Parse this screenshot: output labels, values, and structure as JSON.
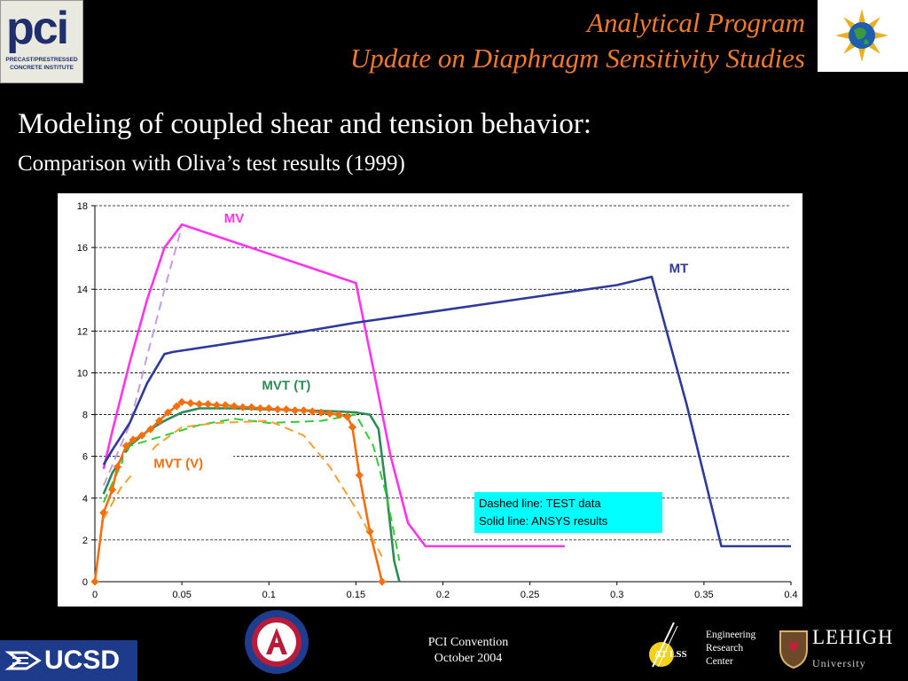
{
  "header": {
    "title_line1": "Analytical Program",
    "title_line2": "Update on Diaphragm Sensitivity Studies"
  },
  "logos": {
    "pci_big": "pci",
    "pci_small1": "PRECAST/PRESTRESSED",
    "pci_small2": "CONCRETE INSTITUTE",
    "ucsd": "UCSD",
    "atlss": "AT LSS",
    "lehigh": "LEHIGH",
    "lehigh_sub": "University"
  },
  "heading": "Modeling of coupled shear and tension behavior:",
  "subheading": "Comparison with Oliva’s test results (1999)",
  "footer": {
    "line1": "PCI Convention",
    "line2": "October 2004",
    "erc_line1": "Engineering",
    "erc_line2": "Research",
    "erc_line3": "Center"
  },
  "colors": {
    "title": "#f07a2a",
    "mv": "#ff33ee",
    "mt": "#2d3a9a",
    "mvt_t": "#2e8b57",
    "mvt_v": "#f07010",
    "legend_bg": "#00ffff"
  },
  "chart_data": {
    "type": "line",
    "x_ticks": [
      "0",
      "0.05",
      "0.1",
      "0.15",
      "0.2",
      "0.25",
      "0.3",
      "0.35",
      "0.4"
    ],
    "y_ticks": [
      "0",
      "2",
      "4",
      "6",
      "8",
      "10",
      "12",
      "14",
      "16",
      "18"
    ],
    "xlim": [
      0,
      0.4
    ],
    "ylim": [
      0,
      18
    ],
    "grid": "horizontal dashed",
    "annotation_box": {
      "line1": "Dashed line: TEST data",
      "line2": "Solid line: ANSYS results"
    },
    "series": [
      {
        "name": "MV",
        "style": "solid",
        "color": "#ff33ee",
        "points": [
          [
            0.005,
            5.4
          ],
          [
            0.01,
            7.2
          ],
          [
            0.02,
            10.5
          ],
          [
            0.03,
            13.5
          ],
          [
            0.04,
            16.0
          ],
          [
            0.05,
            17.1
          ],
          [
            0.15,
            14.3
          ],
          [
            0.16,
            10.2
          ],
          [
            0.17,
            6.0
          ],
          [
            0.18,
            2.8
          ],
          [
            0.19,
            1.7
          ],
          [
            0.27,
            1.7
          ]
        ]
      },
      {
        "name": "",
        "style": "dashed",
        "color": "#c79be0",
        "points": [
          [
            0.005,
            4.6
          ],
          [
            0.02,
            7.5
          ],
          [
            0.03,
            10.8
          ],
          [
            0.04,
            14.0
          ],
          [
            0.05,
            17.0
          ]
        ]
      },
      {
        "name": "MT",
        "style": "solid",
        "color": "#2d3a9a",
        "points": [
          [
            0.005,
            5.6
          ],
          [
            0.01,
            6.3
          ],
          [
            0.02,
            7.6
          ],
          [
            0.03,
            9.5
          ],
          [
            0.04,
            10.9
          ],
          [
            0.045,
            11.0
          ],
          [
            0.1,
            11.7
          ],
          [
            0.15,
            12.4
          ],
          [
            0.2,
            13.0
          ],
          [
            0.25,
            13.6
          ],
          [
            0.3,
            14.2
          ],
          [
            0.32,
            14.6
          ],
          [
            0.34,
            8.5
          ],
          [
            0.36,
            1.7
          ],
          [
            0.4,
            1.7
          ]
        ]
      },
      {
        "name": "MVT (T)",
        "style": "solid",
        "color": "#2e8b57",
        "points": [
          [
            0.005,
            4.2
          ],
          [
            0.01,
            5.2
          ],
          [
            0.02,
            6.5
          ],
          [
            0.03,
            7.2
          ],
          [
            0.04,
            7.7
          ],
          [
            0.05,
            8.1
          ],
          [
            0.06,
            8.3
          ],
          [
            0.08,
            8.3
          ],
          [
            0.1,
            8.25
          ],
          [
            0.12,
            8.2
          ],
          [
            0.14,
            8.15
          ],
          [
            0.15,
            8.1
          ],
          [
            0.158,
            8.0
          ],
          [
            0.163,
            7.3
          ],
          [
            0.168,
            4.0
          ],
          [
            0.172,
            1.0
          ],
          [
            0.175,
            0
          ]
        ]
      },
      {
        "name": "",
        "style": "dashed",
        "color": "#33cc33",
        "points": [
          [
            0.005,
            3.8
          ],
          [
            0.02,
            6.5
          ],
          [
            0.04,
            7.0
          ],
          [
            0.06,
            7.5
          ],
          [
            0.08,
            7.8
          ],
          [
            0.1,
            7.6
          ],
          [
            0.13,
            7.7
          ],
          [
            0.15,
            8.0
          ],
          [
            0.16,
            6.5
          ],
          [
            0.168,
            4.0
          ],
          [
            0.175,
            1.0
          ]
        ]
      },
      {
        "name": "MVT (V)",
        "style": "solid-markers",
        "color": "#f07010",
        "points": [
          [
            0,
            0
          ],
          [
            0.005,
            3.3
          ],
          [
            0.01,
            4.4
          ],
          [
            0.013,
            5.5
          ],
          [
            0.018,
            6.5
          ],
          [
            0.022,
            6.8
          ],
          [
            0.027,
            7.0
          ],
          [
            0.032,
            7.3
          ],
          [
            0.037,
            7.7
          ],
          [
            0.042,
            8.1
          ],
          [
            0.047,
            8.4
          ],
          [
            0.05,
            8.6
          ],
          [
            0.055,
            8.55
          ],
          [
            0.06,
            8.5
          ],
          [
            0.065,
            8.5
          ],
          [
            0.07,
            8.45
          ],
          [
            0.075,
            8.45
          ],
          [
            0.08,
            8.4
          ],
          [
            0.085,
            8.35
          ],
          [
            0.09,
            8.35
          ],
          [
            0.095,
            8.3
          ],
          [
            0.1,
            8.3
          ],
          [
            0.105,
            8.25
          ],
          [
            0.11,
            8.25
          ],
          [
            0.115,
            8.2
          ],
          [
            0.12,
            8.2
          ],
          [
            0.125,
            8.15
          ],
          [
            0.13,
            8.1
          ],
          [
            0.135,
            8.05
          ],
          [
            0.14,
            8.0
          ],
          [
            0.145,
            7.9
          ],
          [
            0.148,
            7.4
          ],
          [
            0.152,
            5.1
          ],
          [
            0.158,
            2.4
          ],
          [
            0.165,
            0
          ]
        ]
      },
      {
        "name": "",
        "style": "dashed",
        "color": "#f5a030",
        "points": [
          [
            0.005,
            3.0
          ],
          [
            0.015,
            4.5
          ],
          [
            0.025,
            5.5
          ],
          [
            0.035,
            6.5
          ],
          [
            0.05,
            7.4
          ],
          [
            0.07,
            7.6
          ],
          [
            0.1,
            7.7
          ],
          [
            0.12,
            7.0
          ],
          [
            0.135,
            5.5
          ],
          [
            0.15,
            3.5
          ],
          [
            0.16,
            2.0
          ],
          [
            0.165,
            1.2
          ]
        ]
      }
    ]
  }
}
